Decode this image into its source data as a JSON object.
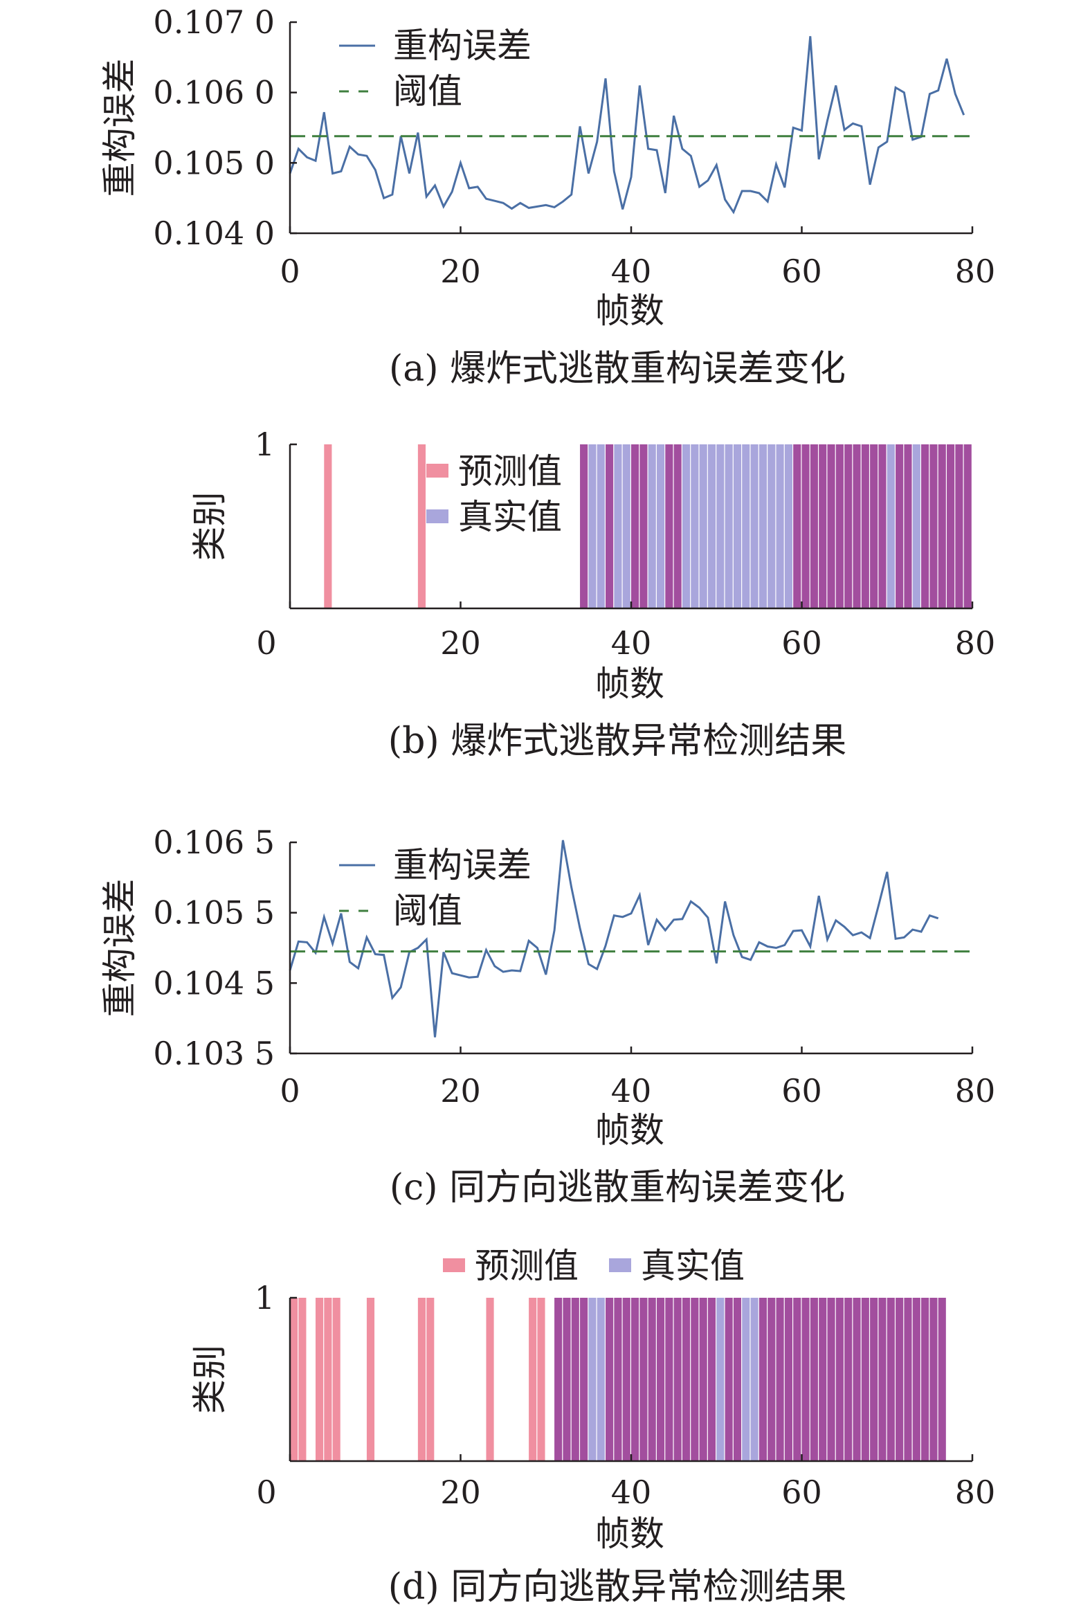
{
  "chart_data": [
    {
      "type": "line",
      "caption": "(a) 爆炸式逃散重构误差变化",
      "xlabel": "帧数",
      "ylabel": "重构误差",
      "xlim": [
        0,
        80
      ],
      "ylim": [
        0.104,
        0.107
      ],
      "xticks": [
        "0",
        "20",
        "40",
        "60",
        "80"
      ],
      "yticks": [
        "0.104 0",
        "0.105 0",
        "0.106 0",
        "0.107 0"
      ],
      "legend_position": "top-left",
      "colors": {
        "error": "#4a6fa5",
        "threshold": "#3f7f3f"
      },
      "series": [
        {
          "name": "重构误差",
          "style": "solid",
          "x": [
            0,
            1,
            2,
            3,
            4,
            5,
            6,
            7,
            8,
            9,
            10,
            11,
            12,
            13,
            14,
            15,
            16,
            17,
            18,
            19,
            20,
            21,
            22,
            23,
            24,
            25,
            26,
            27,
            28,
            29,
            30,
            31,
            32,
            33,
            34,
            35,
            36,
            37,
            38,
            39,
            40,
            41,
            42,
            43,
            44,
            45,
            46,
            47,
            48,
            49,
            50,
            51,
            52,
            53,
            54,
            55,
            56,
            57,
            58,
            59,
            60,
            61,
            62,
            63,
            64,
            65,
            66,
            67,
            68,
            69,
            70,
            71,
            72,
            73,
            74,
            75,
            76,
            77,
            78,
            79
          ],
          "y": [
            0.10485,
            0.1052,
            0.10508,
            0.10503,
            0.10572,
            0.10485,
            0.10488,
            0.10523,
            0.10512,
            0.1051,
            0.1049,
            0.1045,
            0.10455,
            0.10538,
            0.10485,
            0.10543,
            0.10452,
            0.10468,
            0.10438,
            0.10459,
            0.105,
            0.10464,
            0.10466,
            0.10449,
            0.10446,
            0.10443,
            0.10435,
            0.10443,
            0.10436,
            0.10438,
            0.1044,
            0.10437,
            0.10445,
            0.10455,
            0.10552,
            0.10485,
            0.1053,
            0.1062,
            0.10488,
            0.10434,
            0.1048,
            0.1061,
            0.1052,
            0.10518,
            0.10457,
            0.10567,
            0.1052,
            0.1051,
            0.10466,
            0.10475,
            0.10497,
            0.10448,
            0.1043,
            0.1046,
            0.1046,
            0.10457,
            0.10445,
            0.10498,
            0.10465,
            0.1055,
            0.10546,
            0.1068,
            0.10505,
            0.1056,
            0.1061,
            0.10547,
            0.10556,
            0.10552,
            0.10469,
            0.10522,
            0.1053,
            0.10607,
            0.106,
            0.10533,
            0.10537,
            0.10598,
            0.10603,
            0.10648,
            0.10598,
            0.10568
          ]
        },
        {
          "name": "阈值",
          "style": "dashed",
          "x": [
            0,
            80
          ],
          "y": [
            0.10538,
            0.10538
          ]
        }
      ]
    },
    {
      "type": "bar",
      "caption": "(b) 爆炸式逃散异常检测结果",
      "xlabel": "帧数",
      "ylabel": "类别",
      "xlim": [
        0,
        80
      ],
      "ylim": [
        0,
        1
      ],
      "xticks": [
        "0",
        "20",
        "40",
        "60",
        "80"
      ],
      "yticks": [
        "1"
      ],
      "legend_position": "top-center",
      "colors": {
        "predicted": "#f08fa0",
        "true": "#a9a6dc",
        "overlap": "#a24e9e"
      },
      "series": [
        {
          "name": "预测值",
          "frames": [
            4,
            15,
            34,
            37,
            40,
            41,
            44,
            45,
            59,
            60,
            61,
            62,
            63,
            64,
            65,
            66,
            67,
            68,
            69,
            71,
            72,
            74,
            75,
            76,
            77,
            78,
            79
          ]
        },
        {
          "name": "真实值",
          "frames": [
            34,
            35,
            36,
            37,
            38,
            39,
            40,
            41,
            42,
            43,
            44,
            45,
            46,
            47,
            48,
            49,
            50,
            51,
            52,
            53,
            54,
            55,
            56,
            57,
            58,
            59,
            60,
            61,
            62,
            63,
            64,
            65,
            66,
            67,
            68,
            69,
            70,
            71,
            72,
            73,
            74,
            75,
            76,
            77,
            78,
            79
          ]
        }
      ]
    },
    {
      "type": "line",
      "caption": "(c) 同方向逃散重构误差变化",
      "xlabel": "帧数",
      "ylabel": "重构误差",
      "xlim": [
        0,
        80
      ],
      "ylim": [
        0.1035,
        0.1065
      ],
      "xticks": [
        "0",
        "20",
        "40",
        "60",
        "80"
      ],
      "yticks": [
        "0.103 5",
        "0.104 5",
        "0.105 5",
        "0.106 5"
      ],
      "legend_position": "top-left",
      "colors": {
        "error": "#4a6fa5",
        "threshold": "#3f7f3f"
      },
      "series": [
        {
          "name": "重构误差",
          "style": "solid",
          "x": [
            0,
            1,
            2,
            3,
            4,
            5,
            6,
            7,
            8,
            9,
            10,
            11,
            12,
            13,
            14,
            15,
            16,
            17,
            18,
            19,
            20,
            21,
            22,
            23,
            24,
            25,
            26,
            27,
            28,
            29,
            30,
            31,
            32,
            33,
            34,
            35,
            36,
            37,
            38,
            39,
            40,
            41,
            42,
            43,
            44,
            45,
            46,
            47,
            48,
            49,
            50,
            51,
            52,
            53,
            54,
            55,
            56,
            57,
            58,
            59,
            60,
            61,
            62,
            63,
            64,
            65,
            66,
            67,
            68,
            69,
            70,
            71,
            72,
            73,
            74,
            75,
            76
          ],
          "y": [
            0.10468,
            0.10509,
            0.10508,
            0.10493,
            0.10544,
            0.10506,
            0.10549,
            0.1048,
            0.10471,
            0.10515,
            0.10491,
            0.1049,
            0.10429,
            0.10444,
            0.10494,
            0.105,
            0.10512,
            0.10373,
            0.10494,
            0.10464,
            0.10461,
            0.10458,
            0.10459,
            0.10497,
            0.10474,
            0.10466,
            0.10468,
            0.10467,
            0.1051,
            0.105,
            0.10462,
            0.10525,
            0.10653,
            0.10586,
            0.10528,
            0.10477,
            0.1047,
            0.10503,
            0.10546,
            0.10544,
            0.10549,
            0.10575,
            0.10504,
            0.1054,
            0.10525,
            0.1054,
            0.10541,
            0.10566,
            0.10557,
            0.10543,
            0.10478,
            0.10566,
            0.10518,
            0.10487,
            0.10483,
            0.10508,
            0.10502,
            0.105,
            0.10504,
            0.10524,
            0.10525,
            0.10502,
            0.10574,
            0.10512,
            0.10539,
            0.1053,
            0.10518,
            0.10522,
            0.10514,
            0.1056,
            0.10608,
            0.10513,
            0.10515,
            0.10526,
            0.10523,
            0.10546,
            0.10542
          ]
        },
        {
          "name": "阈值",
          "style": "dashed",
          "x": [
            0,
            80
          ],
          "y": [
            0.10495,
            0.10495
          ]
        }
      ]
    },
    {
      "type": "bar",
      "caption": "(d) 同方向逃散异常检测结果",
      "xlabel": "帧数",
      "ylabel": "类别",
      "xlim": [
        0,
        80
      ],
      "ylim": [
        0,
        1
      ],
      "xticks": [
        "0",
        "20",
        "40",
        "60",
        "80"
      ],
      "yticks": [
        "1"
      ],
      "legend_position": "top",
      "colors": {
        "predicted": "#f08fa0",
        "true": "#a9a6dc",
        "overlap": "#a24e9e"
      },
      "series": [
        {
          "name": "预测值",
          "frames": [
            0,
            1,
            3,
            4,
            5,
            9,
            15,
            16,
            23,
            28,
            29,
            31,
            32,
            33,
            34,
            37,
            38,
            39,
            40,
            41,
            42,
            43,
            44,
            45,
            46,
            47,
            48,
            49,
            51,
            52,
            55,
            56,
            57,
            58,
            59,
            60,
            61,
            62,
            63,
            64,
            65,
            66,
            67,
            68,
            69,
            70,
            71,
            72,
            73,
            74,
            75,
            76
          ]
        },
        {
          "name": "真实值",
          "frames": [
            31,
            32,
            33,
            34,
            35,
            36,
            37,
            38,
            39,
            40,
            41,
            42,
            43,
            44,
            45,
            46,
            47,
            48,
            49,
            50,
            51,
            52,
            53,
            54,
            55,
            56,
            57,
            58,
            59,
            60,
            61,
            62,
            63,
            64,
            65,
            66,
            67,
            68,
            69,
            70,
            71,
            72,
            73,
            74,
            75,
            76
          ]
        }
      ]
    }
  ]
}
